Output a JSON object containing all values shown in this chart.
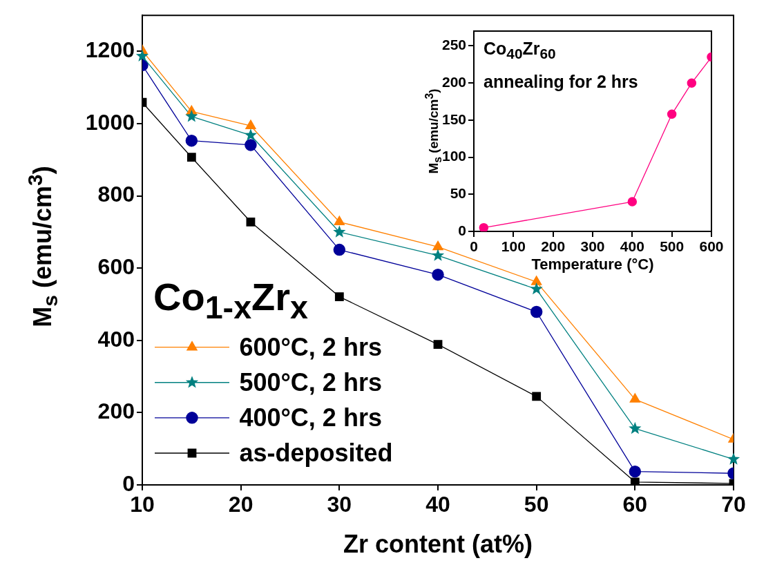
{
  "chart_data": [
    {
      "type": "line",
      "xlabel": "Zr content (at%)",
      "ylabel": "M$_{s}$ (emu/cm$^{3}$)",
      "x": [
        10,
        15,
        21,
        30,
        40,
        50,
        60,
        70
      ],
      "xlim": [
        10,
        70
      ],
      "xticks": [
        10,
        20,
        30,
        40,
        50,
        60,
        70
      ],
      "ylim": [
        0,
        1300
      ],
      "yticks": [
        0,
        200,
        400,
        600,
        800,
        1000,
        1200
      ],
      "grid": false,
      "legend": "bottom left",
      "annotations": [
        "Co$_{1-x}$Zr$_{x}$"
      ],
      "series": [
        {
          "name": "600°C, 2 hrs",
          "color": "#ff8000",
          "marker": "triangle",
          "values": [
            1202,
            1034,
            994,
            728,
            659,
            562,
            237,
            126
          ]
        },
        {
          "name": "500°C, 2 hrs",
          "color": "#008080",
          "marker": "star",
          "values": [
            1187,
            1020,
            968,
            700,
            635,
            542,
            156,
            71
          ]
        },
        {
          "name": "400°C, 2 hrs",
          "color": "#000099",
          "marker": "circle",
          "values": [
            1162,
            953,
            941,
            651,
            582,
            479,
            37,
            32
          ]
        },
        {
          "name": "as-deposited",
          "color": "#000000",
          "marker": "square",
          "values": [
            1059,
            907,
            728,
            521,
            389,
            245,
            8,
            4
          ]
        }
      ]
    },
    {
      "type": "line",
      "xlabel": "Temperature (°C)",
      "ylabel": "M$_{s}$ (emu/cm$^{3}$)",
      "x": [
        25,
        400,
        500,
        550,
        600
      ],
      "xlim": [
        0,
        600
      ],
      "xticks": [
        0,
        100,
        200,
        300,
        400,
        500,
        600
      ],
      "ylim": [
        0,
        270
      ],
      "yticks": [
        0,
        50,
        100,
        150,
        200,
        250
      ],
      "grid": false,
      "legend": false,
      "marker": "circle",
      "annotations": [
        "Co$_{40}$Zr$_{60}$",
        "annealing for 2 hrs"
      ],
      "series": [
        {
          "color": "#ff0080",
          "values": [
            5,
            40,
            158,
            200,
            235
          ]
        }
      ]
    }
  ]
}
